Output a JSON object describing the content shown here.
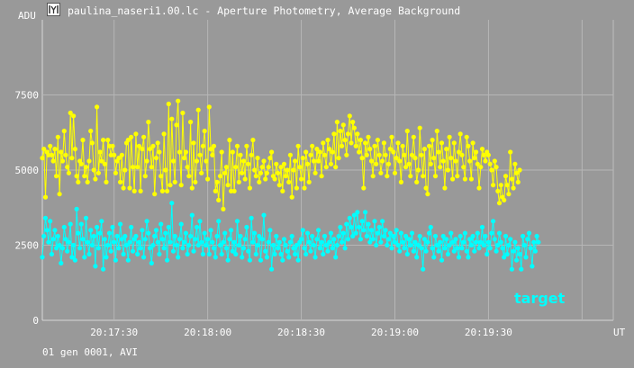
{
  "window": {
    "title": "paulina_naseri1.00.lc - Aperture Photometry, Average Background",
    "icon": "chart-app-icon"
  },
  "chart_data": {
    "type": "scatter",
    "ylabel": "ADU",
    "xlabel": "UT",
    "ylim": [
      0,
      10000
    ],
    "yticks": [
      0,
      2500,
      5000,
      7500
    ],
    "xlim": [
      "20:17:07",
      "20:20:10"
    ],
    "xticks": [
      "20:17:30",
      "20:18:00",
      "20:18:30",
      "20:19:00",
      "20:19:30"
    ],
    "grid": true,
    "footer": "01 gen 0001, AVI",
    "legend_position": "bottom-right",
    "series": [
      {
        "name": "",
        "color": "#ffff00",
        "connected": true,
        "x_start": "20:17:07",
        "x_step_seconds": 0.5,
        "values": [
          5400,
          5700,
          4100,
          5600,
          5500,
          5800,
          5500,
          5300,
          5700,
          4800,
          6100,
          4200,
          5600,
          5300,
          6300,
          5500,
          5100,
          4900,
          6900,
          5400,
          6800,
          5700,
          4800,
          4600,
          5300,
          5200,
          6000,
          4800,
          5100,
          4600,
          5300,
          6300,
          5900,
          5000,
          4700,
          7100,
          4900,
          5600,
          5300,
          6000,
          5200,
          4600,
          6000,
          5800,
          5500,
          5800,
          5500,
          4900,
          5300,
          5400,
          4600,
          5500,
          4400,
          5000,
          5900,
          6000,
          4400,
          6100,
          5100,
          4300,
          6200,
          5100,
          5800,
          4300,
          5700,
          6100,
          4800,
          5300,
          6600,
          5700,
          5100,
          5800,
          4200,
          5400,
          5900,
          5600,
          4800,
          4300,
          6200,
          5000,
          4300,
          7200,
          4500,
          6700,
          5300,
          4600,
          6500,
          7300,
          5600,
          4500,
          6900,
          5400,
          5600,
          5100,
          4800,
          6600,
          4400,
          5900,
          4600,
          5300,
          7000,
          5500,
          4900,
          5800,
          6300,
          5300,
          4700,
          7100,
          5700,
          5500,
          5800,
          4300,
          4600,
          4000,
          4800,
          5600,
          3700,
          4900,
          5100,
          4500,
          6000,
          4300,
          5600,
          4300,
          5100,
          5800,
          4600,
          5500,
          4900,
          5300,
          4700,
          5800,
          5200,
          4400,
          5500,
          6000,
          5000,
          4800,
          5400,
          4600,
          4900,
          5100,
          5300,
          4700,
          4900,
          5100,
          5400,
          5600,
          4800,
          4700,
          5200,
          4900,
          4500,
          5100,
          4300,
          5200,
          4800,
          5000,
          4600,
          5500,
          4100,
          5000,
          5300,
          4400,
          5800,
          5100,
          4700,
          5400,
          4400,
          5600,
          5200,
          4600,
          5500,
          5800,
          5300,
          4900,
          5700,
          5300,
          5600,
          4800,
          5900,
          5500,
          5100,
          6000,
          5700,
          5200,
          5600,
          6200,
          5100,
          6600,
          5400,
          6300,
          5800,
          6500,
          6000,
          5500,
          6200,
          6800,
          5900,
          6600,
          6400,
          5800,
          6200,
          5600,
          6000,
          5400,
          4400,
          5900,
          5500,
          6100,
          5700,
          5300,
          4800,
          5800,
          5200,
          6000,
          5500,
          4900,
          5300,
          5900,
          5500,
          4800,
          5200,
          5700,
          6100,
          5600,
          4900,
          5400,
          5900,
          5300,
          4600,
          5800,
          5500,
          5100,
          6300,
          5200,
          4800,
          5500,
          6100,
          5400,
          4600,
          5000,
          6400,
          5500,
          4800,
          5700,
          4400,
          4200,
          5800,
          5200,
          6000,
          5400,
          4800,
          6300,
          5600,
          5100,
          5900,
          5300,
          4400,
          5700,
          5000,
          6100,
          5400,
          4700,
          5900,
          5300,
          4800,
          5600,
          6200,
          5500,
          5100,
          4700,
          6100,
          5800,
          5300,
          4700,
          5900,
          5400,
          5600,
          5200,
          4400,
          5100,
          5700,
          5500,
          5300,
          5600,
          5500,
          5200,
          5000,
          4500,
          5300,
          5100,
          4300,
          3900,
          4500,
          4100,
          4000,
          4800,
          4500,
          4200,
          5600,
          4700,
          4400,
          5200,
          4900,
          4600,
          5000
        ]
      },
      {
        "name": "target",
        "color": "#00ffff",
        "connected": true,
        "x_start": "20:17:07",
        "x_step_seconds": 0.5,
        "values": [
          2100,
          2800,
          3400,
          3000,
          2600,
          3300,
          2200,
          2700,
          3000,
          2400,
          2800,
          2500,
          1900,
          2400,
          3100,
          2700,
          2300,
          2600,
          3200,
          2100,
          2500,
          2000,
          3700,
          2900,
          2400,
          3200,
          2700,
          2100,
          3400,
          2600,
          2200,
          3000,
          2500,
          2800,
          1800,
          3100,
          2400,
          2900,
          3300,
          1700,
          2700,
          2100,
          2500,
          2900,
          2300,
          3100,
          2600,
          2000,
          2800,
          2400,
          3200,
          2700,
          2200,
          2800,
          2500,
          2000,
          2600,
          3100,
          2300,
          2700,
          2800,
          2200,
          2600,
          2400,
          3000,
          2100,
          2700,
          3300,
          2900,
          2400,
          1900,
          2500,
          2800,
          3000,
          2600,
          2200,
          3200,
          2700,
          2400,
          2900,
          2000,
          3100,
          2600,
          3900,
          2300,
          2800,
          2500,
          2100,
          2700,
          3200,
          2400,
          2600,
          2900,
          2200,
          2500,
          2800,
          3500,
          2300,
          2700,
          3100,
          2500,
          3300,
          2600,
          2200,
          2900,
          2500,
          2700,
          2200,
          3000,
          2600,
          2400,
          2100,
          2800,
          3300,
          2500,
          2200,
          2600,
          2900,
          2400,
          2000,
          2700,
          3000,
          2300,
          2600,
          2200,
          3300,
          2500,
          2800,
          2100,
          2400,
          2700,
          3100,
          2300,
          2000,
          3400,
          2600,
          2900,
          2200,
          2500,
          2800,
          2000,
          2700,
          3500,
          2300,
          2100,
          2600,
          3000,
          1700,
          2500,
          2200,
          2800,
          2400,
          2600,
          2200,
          2000,
          2700,
          2500,
          2300,
          2100,
          2600,
          2800,
          2400,
          2200,
          2500,
          2000,
          2600,
          2700,
          3000,
          2400,
          2200,
          2900,
          2600,
          2300,
          2800,
          2500,
          2100,
          2700,
          3000,
          2400,
          2600,
          2200,
          2800,
          2500,
          2300,
          2600,
          2900,
          2400,
          2700,
          2100,
          2500,
          2800,
          3100,
          2600,
          2900,
          2400,
          3200,
          2700,
          3400,
          3100,
          2800,
          3500,
          2900,
          3600,
          3100,
          2700,
          3300,
          3000,
          3600,
          2800,
          3200,
          2600,
          3000,
          2700,
          3300,
          2500,
          2900,
          3100,
          2600,
          3300,
          2800,
          3000,
          2500,
          2700,
          2900,
          2400,
          2800,
          2600,
          3000,
          2500,
          2300,
          2900,
          2600,
          2400,
          2800,
          2200,
          2700,
          2500,
          2900,
          2300,
          2600,
          2100,
          2500,
          2800,
          2400,
          1700,
          2700,
          2300,
          2600,
          2900,
          3100,
          2400,
          2100,
          2800,
          2500,
          2300,
          2600,
          2000,
          2800,
          2400,
          2700,
          2200,
          2500,
          2900,
          2600,
          2300,
          2700,
          2400,
          2100,
          2800,
          2400,
          2600,
          2900,
          2300,
          2100,
          2700,
          2500,
          2800,
          2300,
          2600,
          2900,
          2400,
          2600,
          3100,
          2500,
          2800,
          2200,
          2600,
          2400,
          2900,
          3300,
          2700,
          2300,
          2500,
          2900,
          2600,
          2400,
          2100,
          2800,
          2200,
          2500,
          2700,
          1700,
          2300,
          2600,
          2000,
          2400,
          2200,
          1700,
          2800,
          2500,
          2100,
          2700,
          2900,
          2400,
          1800,
          2600,
          2300,
          2800,
          2600
        ]
      }
    ]
  }
}
